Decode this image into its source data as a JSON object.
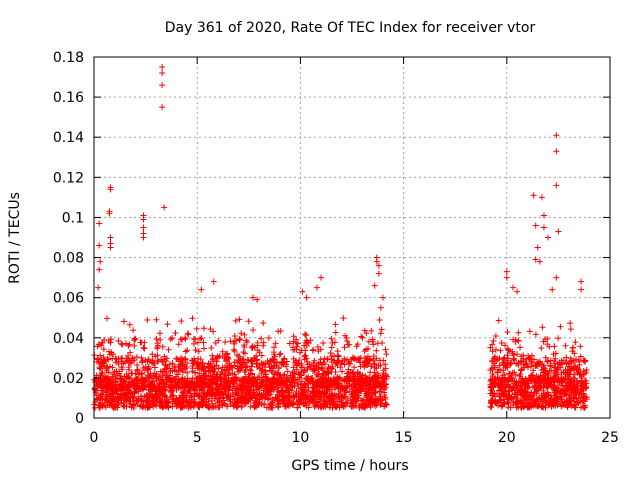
{
  "chart_data": {
    "type": "scatter",
    "title": "Day 361 of 2020, Rate Of TEC Index for receiver vtor",
    "xlabel": "GPS time / hours",
    "ylabel": "ROTI / TECUs",
    "xlim": [
      0,
      25
    ],
    "ylim": [
      0,
      0.18
    ],
    "xticks": [
      0,
      5,
      10,
      15,
      20,
      25
    ],
    "xtick_labels": [
      "0",
      "5",
      "10",
      "15",
      "20",
      "25"
    ],
    "yticks": [
      0,
      0.02,
      0.04,
      0.06,
      0.08,
      0.1,
      0.12,
      0.14,
      0.16,
      0.18
    ],
    "ytick_labels": [
      "0",
      "0.02",
      "0.04",
      "0.06",
      "0.08",
      "0.1",
      "0.12",
      "0.14",
      "0.16",
      "0.18"
    ],
    "grid": true,
    "marker": "+",
    "color": "#ff0000",
    "segments": [
      [
        0.0,
        14.2
      ],
      [
        19.2,
        23.9
      ]
    ],
    "points": [
      [
        3.3,
        0.175
      ],
      [
        3.3,
        0.172
      ],
      [
        3.3,
        0.166
      ],
      [
        3.3,
        0.155
      ],
      [
        3.4,
        0.105
      ],
      [
        0.8,
        0.115
      ],
      [
        0.8,
        0.114
      ],
      [
        0.75,
        0.103
      ],
      [
        0.75,
        0.102
      ],
      [
        0.8,
        0.09
      ],
      [
        0.8,
        0.087
      ],
      [
        0.8,
        0.085
      ],
      [
        0.25,
        0.097
      ],
      [
        0.25,
        0.086
      ],
      [
        0.25,
        0.074
      ],
      [
        0.3,
        0.078
      ],
      [
        0.2,
        0.065
      ],
      [
        2.4,
        0.101
      ],
      [
        2.4,
        0.099
      ],
      [
        2.4,
        0.095
      ],
      [
        2.4,
        0.092
      ],
      [
        2.4,
        0.09
      ],
      [
        5.2,
        0.064
      ],
      [
        5.8,
        0.068
      ],
      [
        7.7,
        0.06
      ],
      [
        7.9,
        0.059
      ],
      [
        10.1,
        0.063
      ],
      [
        10.3,
        0.06
      ],
      [
        10.8,
        0.065
      ],
      [
        11.0,
        0.07
      ],
      [
        13.7,
        0.08
      ],
      [
        13.7,
        0.078
      ],
      [
        13.8,
        0.076
      ],
      [
        13.8,
        0.072
      ],
      [
        13.6,
        0.066
      ],
      [
        14.0,
        0.06
      ],
      [
        13.9,
        0.055
      ],
      [
        20.0,
        0.073
      ],
      [
        20.0,
        0.07
      ],
      [
        20.3,
        0.065
      ],
      [
        20.5,
        0.063
      ],
      [
        21.3,
        0.111
      ],
      [
        21.4,
        0.096
      ],
      [
        21.5,
        0.085
      ],
      [
        21.4,
        0.079
      ],
      [
        21.6,
        0.078
      ],
      [
        21.7,
        0.11
      ],
      [
        21.8,
        0.101
      ],
      [
        21.8,
        0.095
      ],
      [
        22.0,
        0.09
      ],
      [
        22.2,
        0.064
      ],
      [
        22.4,
        0.141
      ],
      [
        22.4,
        0.133
      ],
      [
        22.4,
        0.116
      ],
      [
        22.5,
        0.093
      ],
      [
        22.4,
        0.07
      ],
      [
        23.6,
        0.068
      ],
      [
        23.6,
        0.064
      ]
    ]
  }
}
